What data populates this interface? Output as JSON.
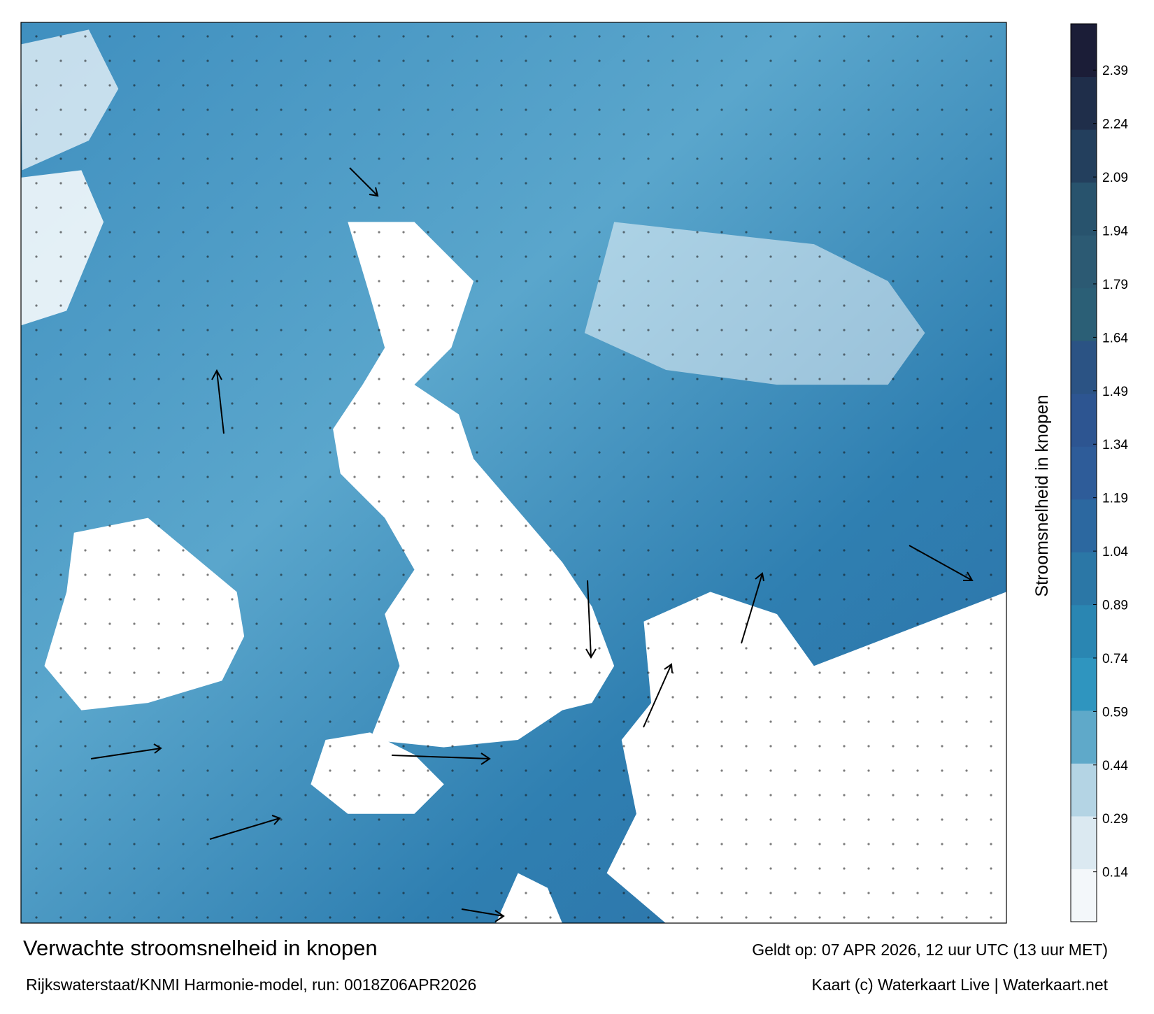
{
  "map": {
    "title": "Verwachte stroomsnelheid in knopen",
    "subtitle": "Rijkswaterstaat/KNMI Harmonie-model, run: 0018Z06APR2026",
    "valid_time": "Geldt op: 07 APR 2026, 12 uur UTC (13 uur MET)",
    "credit": "Kaart (c) Waterkaart Live | Waterkaart.net",
    "colorbar": {
      "label": "Stroomsnelheid in knopen",
      "lim": [
        0,
        2.52
      ],
      "ticks": [
        0.14,
        0.29,
        0.44,
        0.59,
        0.74,
        0.89,
        1.04,
        1.19,
        1.34,
        1.49,
        1.64,
        1.79,
        1.94,
        2.09,
        2.24,
        2.39
      ],
      "colors": [
        "#f3f7fa",
        "#dbe9f1",
        "#b4d4e4",
        "#5fa9c9",
        "#2f95bf",
        "#2a86b2",
        "#2b77a6",
        "#2c68a0",
        "#2e5c99",
        "#2d5591",
        "#2b5384",
        "#2b5f76",
        "#2c5a73",
        "#28536d",
        "#233f5d",
        "#1f2e4a",
        "#1b1d37"
      ]
    }
  }
}
